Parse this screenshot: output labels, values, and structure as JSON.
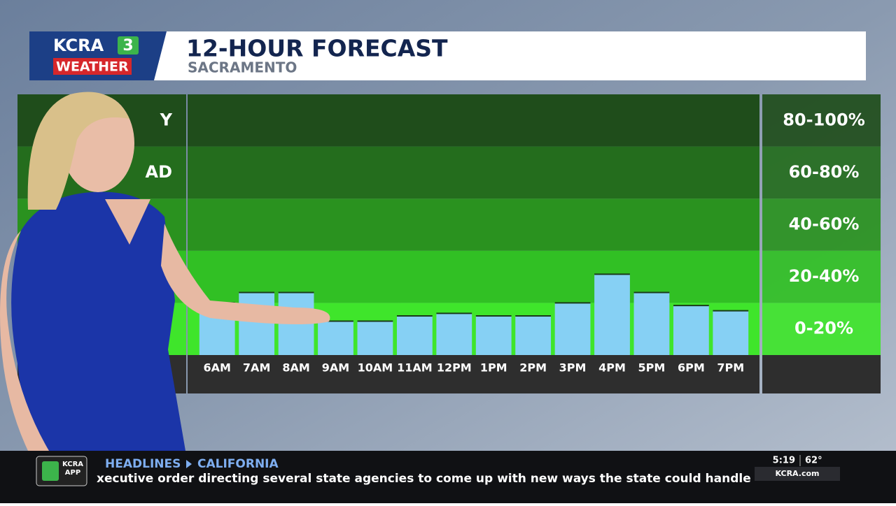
{
  "header": {
    "logo_top": "KCRA",
    "logo_num": "3",
    "logo_bottom": "WEATHER",
    "title": "12-HOUR FORECAST",
    "subtitle": "SACRAMENTO"
  },
  "chart_data": {
    "type": "bar",
    "categories": [
      "6AM",
      "7AM",
      "8AM",
      "9AM",
      "10AM",
      "11AM",
      "12PM",
      "1PM",
      "2PM",
      "3PM",
      "4PM",
      "5PM",
      "6PM",
      "7PM"
    ],
    "values": [
      20,
      24,
      24,
      13,
      13,
      15,
      16,
      15,
      15,
      20,
      31,
      24,
      19,
      17
    ],
    "color": "#86d0f4",
    "ylim": [
      0,
      100
    ],
    "bands": [
      {
        "range": [
          80,
          100
        ],
        "label": "80-100%",
        "side_label": "Y",
        "color": "#1f4d1b"
      },
      {
        "range": [
          60,
          80
        ],
        "label": "60-80%",
        "side_label": "AD",
        "color": "#246d1d"
      },
      {
        "range": [
          40,
          60
        ],
        "label": "40-60%",
        "color": "#2a921f"
      },
      {
        "range": [
          20,
          40
        ],
        "label": "20-40%",
        "color": "#31c024"
      },
      {
        "range": [
          0,
          20
        ],
        "label": "0-20%",
        "color": "#3fe52b"
      }
    ]
  },
  "ticker": {
    "app_top": "KCRA",
    "app_bottom": "APP",
    "section": "HEADLINES",
    "topic": "CALIFORNIA",
    "text": "xecutive order directing several state agencies to come up with new ways the state could handle the co",
    "time": "5:19",
    "temp": "62°",
    "site": "KCRA.com"
  }
}
